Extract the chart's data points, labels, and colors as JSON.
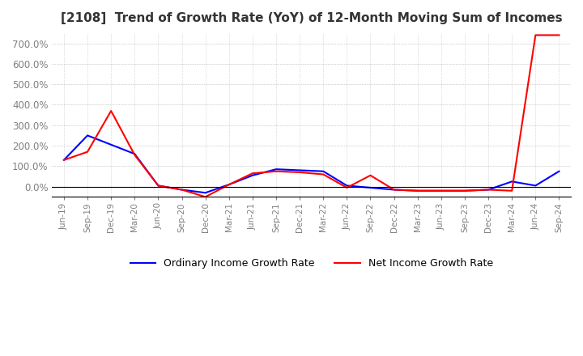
{
  "title": "[2108]  Trend of Growth Rate (YoY) of 12-Month Moving Sum of Incomes",
  "legend_labels": [
    "Ordinary Income Growth Rate",
    "Net Income Growth Rate"
  ],
  "line_colors": [
    "blue",
    "red"
  ],
  "ylim": [
    -50,
    750
  ],
  "yticks": [
    0,
    100,
    200,
    300,
    400,
    500,
    600,
    700
  ],
  "x_labels": [
    "Jun-19",
    "Sep-19",
    "Dec-19",
    "Mar-20",
    "Jun-20",
    "Sep-20",
    "Dec-20",
    "Mar-21",
    "Jun-21",
    "Sep-21",
    "Dec-21",
    "Mar-22",
    "Jun-22",
    "Sep-22",
    "Dec-22",
    "Mar-23",
    "Jun-23",
    "Sep-23",
    "Dec-23",
    "Mar-24",
    "Jun-24",
    "Sep-24"
  ],
  "ordinary_income": [
    130,
    250,
    205,
    160,
    5,
    -15,
    -30,
    10,
    55,
    85,
    80,
    75,
    5,
    -5,
    -15,
    -20,
    -20,
    -20,
    -15,
    25,
    5,
    75
  ],
  "net_income": [
    130,
    170,
    370,
    155,
    5,
    -15,
    -50,
    10,
    65,
    75,
    70,
    60,
    -5,
    55,
    -15,
    -20,
    -20,
    -20,
    -15,
    -20,
    740,
    740
  ]
}
